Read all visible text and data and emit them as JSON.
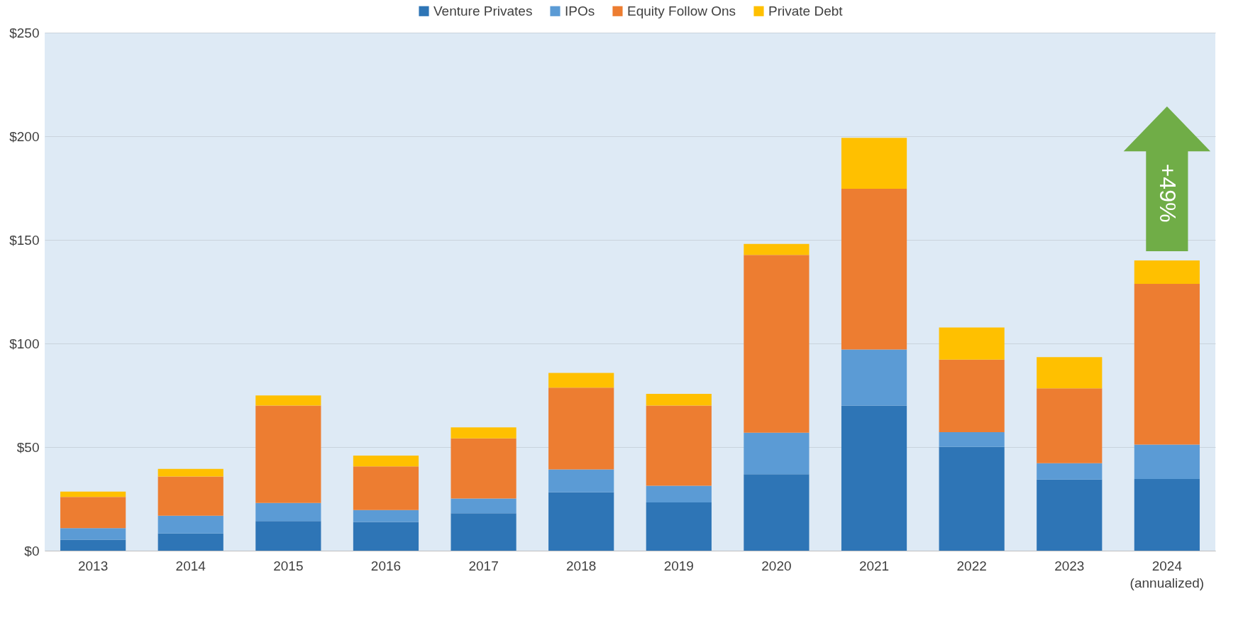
{
  "chart_data": {
    "type": "bar",
    "stacked": true,
    "categories": [
      "2013",
      "2014",
      "2015",
      "2016",
      "2017",
      "2018",
      "2019",
      "2020",
      "2021",
      "2022",
      "2023",
      "2024\n(annualized)"
    ],
    "series": [
      {
        "name": "Venture Privates",
        "color": "#2e75b6",
        "values": [
          5.3,
          8.3,
          14.3,
          13.9,
          18.1,
          28.2,
          23.3,
          36.9,
          70,
          50.1,
          34.3,
          34.6
        ]
      },
      {
        "name": "IPOs",
        "color": "#5b9bd5",
        "values": [
          5.6,
          8.6,
          8.7,
          5.7,
          7.1,
          11,
          8,
          20,
          27.1,
          7.1,
          7.9,
          16.6
        ]
      },
      {
        "name": "Equity Follow Ons",
        "color": "#ed7d31",
        "values": [
          15,
          18.9,
          47,
          21.1,
          29,
          39.5,
          38.7,
          85.8,
          77.6,
          35,
          36.1,
          77.6
        ]
      },
      {
        "name": "Private Debt",
        "color": "#ffc000",
        "values": [
          2.6,
          3.7,
          4.9,
          5.2,
          5.3,
          7.1,
          5.7,
          5.3,
          24.5,
          15.5,
          15.1,
          11.3
        ]
      }
    ],
    "ylim": [
      0,
      250
    ],
    "yticks": [
      {
        "value": 0,
        "label": "$0"
      },
      {
        "value": 50,
        "label": "$50"
      },
      {
        "value": 100,
        "label": "$100"
      },
      {
        "value": 150,
        "label": "$150"
      },
      {
        "value": 200,
        "label": "$200"
      },
      {
        "value": 250,
        "label": "$250"
      }
    ],
    "grid": "y",
    "legend": "top",
    "annotations": [
      "+49%"
    ]
  }
}
